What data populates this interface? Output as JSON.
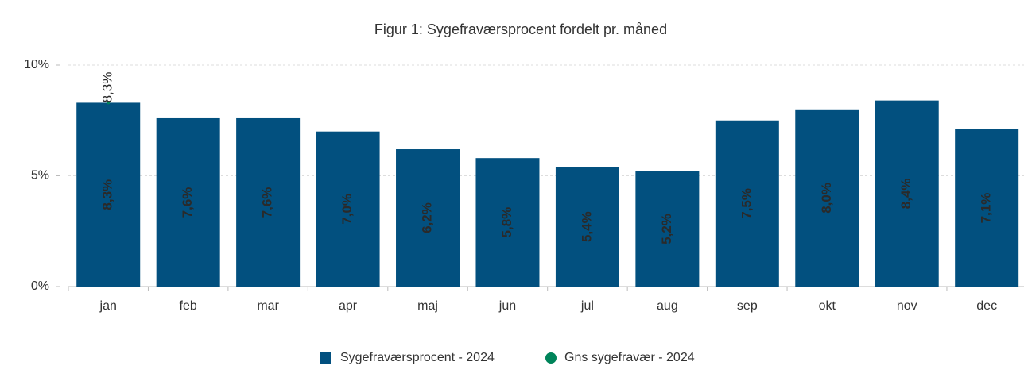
{
  "chart_data": {
    "type": "bar",
    "title": "Figur 1: Sygefraværsprocent fordelt pr. måned",
    "categories": [
      "jan",
      "feb",
      "mar",
      "apr",
      "maj",
      "jun",
      "jul",
      "aug",
      "sep",
      "okt",
      "nov",
      "dec"
    ],
    "series": [
      {
        "name": "Sygefraværsprocent - 2024",
        "color": "#02507f",
        "values": [
          8.3,
          7.6,
          7.6,
          7.0,
          6.2,
          5.8,
          5.4,
          5.2,
          7.5,
          8.0,
          8.4,
          7.1
        ],
        "value_labels": [
          "8,3%",
          "7,6%",
          "7,6%",
          "7,0%",
          "6,2%",
          "5,8%",
          "5,4%",
          "5,2%",
          "7,5%",
          "8,0%",
          "8,4%",
          "7,1%"
        ]
      },
      {
        "name": "Gns sygefravær - 2024",
        "color": "#00845a",
        "values": [
          8.3,
          null,
          null,
          null,
          null,
          null,
          null,
          null,
          null,
          null,
          null,
          null
        ],
        "value_labels": [
          "8,3%",
          null,
          null,
          null,
          null,
          null,
          null,
          null,
          null,
          null,
          null,
          null
        ]
      }
    ],
    "ylim": [
      0,
      10
    ],
    "yticks": [
      {
        "value": 0,
        "label": "0%"
      },
      {
        "value": 5,
        "label": "5%"
      },
      {
        "value": 10,
        "label": "10%"
      }
    ],
    "grid": true
  }
}
